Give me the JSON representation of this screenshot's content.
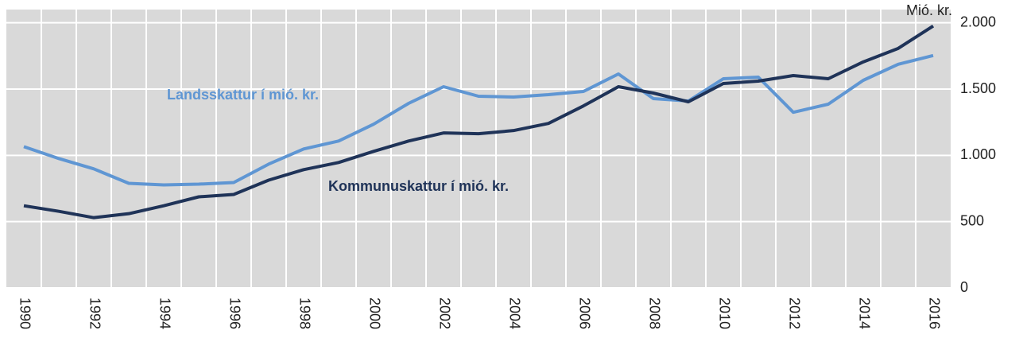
{
  "chart_data": {
    "type": "line",
    "y_axis_label": "Mió. kr.",
    "categories": [
      "1990",
      null,
      "1992",
      null,
      "1994",
      null,
      "1996",
      null,
      "1998",
      null,
      "2000",
      null,
      "2002",
      null,
      "2004",
      null,
      "2006",
      null,
      "2008",
      null,
      "2010",
      null,
      "2012",
      null,
      "2014",
      null,
      "2016"
    ],
    "series": [
      {
        "name": "Landsskattur í mió. kr.",
        "color": "#5f96d3",
        "values": [
          1066,
          976,
          898,
          789,
          777,
          783,
          795,
          934,
          1048,
          1108,
          1235,
          1392,
          1518,
          1446,
          1440,
          1458,
          1482,
          1614,
          1428,
          1410,
          1578,
          1590,
          1325,
          1386,
          1566,
          1687,
          1753
        ]
      },
      {
        "name": "Kommunuskattur í mió. kr.",
        "color": "#1f3358",
        "values": [
          620,
          578,
          530,
          560,
          620,
          687,
          705,
          813,
          892,
          946,
          1030,
          1108,
          1169,
          1163,
          1187,
          1241,
          1373,
          1518,
          1470,
          1404,
          1542,
          1560,
          1602,
          1578,
          1705,
          1807,
          1976
        ]
      }
    ],
    "ylim": [
      0,
      2100
    ],
    "yticks": [
      0,
      500,
      {
        "value": 1000,
        "label": "1.000"
      },
      {
        "value": 1500,
        "label": "1.500"
      },
      {
        "value": 2000,
        "label": "2.000"
      }
    ],
    "y_axis_side": "right",
    "grid": true,
    "background": "#d9d9d9"
  }
}
